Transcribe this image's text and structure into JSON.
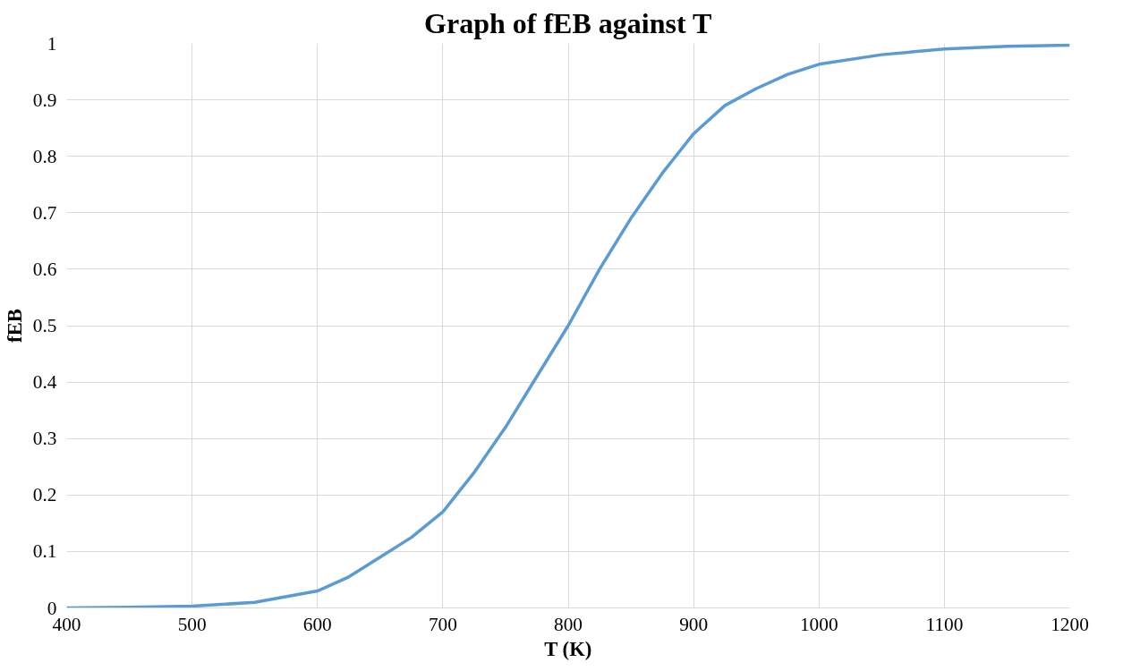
{
  "chart_data": {
    "type": "line",
    "title": "Graph of fEB against T",
    "xlabel": "T (K)",
    "ylabel": "fEB",
    "x": [
      400,
      450,
      500,
      550,
      600,
      625,
      650,
      675,
      700,
      725,
      750,
      775,
      800,
      825,
      850,
      875,
      900,
      925,
      950,
      975,
      1000,
      1050,
      1100,
      1150,
      1200
    ],
    "series": [
      {
        "color": "#5b9bd5",
        "values": [
          0,
          0.001,
          0.003,
          0.01,
          0.03,
          0.055,
          0.09,
          0.125,
          0.17,
          0.24,
          0.32,
          0.41,
          0.5,
          0.6,
          0.69,
          0.77,
          0.84,
          0.89,
          0.92,
          0.945,
          0.963,
          0.98,
          0.99,
          0.995,
          0.997
        ]
      }
    ],
    "xlim": [
      400,
      1200
    ],
    "xticks": [
      400,
      500,
      600,
      700,
      800,
      900,
      1000,
      1100,
      1200
    ],
    "ylim": [
      0,
      1
    ],
    "yticks": [
      0,
      0.1,
      0.2,
      0.3,
      0.4,
      0.5,
      0.6,
      0.7,
      0.8,
      0.9,
      1
    ],
    "grid": true,
    "marker": "none",
    "line_style": "solid"
  }
}
